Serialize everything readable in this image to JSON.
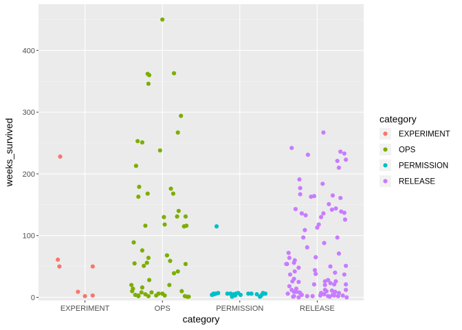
{
  "chart_data": {
    "type": "scatter",
    "title": "",
    "xlabel": "category",
    "ylabel": "weeks_survived",
    "categories": [
      "EXPERIMENT",
      "OPS",
      "PERMISSION",
      "RELEASE"
    ],
    "ylim": [
      -5,
      475
    ],
    "yticks": [
      0,
      100,
      200,
      300,
      400
    ],
    "grid": true,
    "jittered": true,
    "legend": {
      "title": "category",
      "position": "right",
      "entries": [
        "EXPERIMENT",
        "OPS",
        "PERMISSION",
        "RELEASE"
      ]
    },
    "colors": {
      "EXPERIMENT": "#F8766D",
      "OPS": "#7CAE00",
      "PERMISSION": "#00BFC4",
      "RELEASE": "#C77CFF",
      "panel": "#EBEBEB",
      "grid_major": "#FFFFFF"
    },
    "series": [
      {
        "name": "EXPERIMENT",
        "points": [
          [
            -0.32,
            228
          ],
          [
            -0.35,
            61
          ],
          [
            -0.33,
            50
          ],
          [
            0.1,
            50
          ],
          [
            -0.09,
            9
          ],
          [
            0.0,
            2
          ],
          [
            0.1,
            3
          ]
        ]
      },
      {
        "name": "OPS",
        "points": [
          [
            0.0,
            450
          ],
          [
            -0.19,
            362
          ],
          [
            -0.17,
            360
          ],
          [
            0.15,
            363
          ],
          [
            -0.18,
            346
          ],
          [
            0.24,
            294
          ],
          [
            0.2,
            267
          ],
          [
            -0.32,
            253
          ],
          [
            -0.26,
            251
          ],
          [
            -0.03,
            238
          ],
          [
            -0.34,
            213
          ],
          [
            -0.3,
            179
          ],
          [
            0.11,
            176
          ],
          [
            -0.19,
            168
          ],
          [
            0.14,
            168
          ],
          [
            -0.31,
            163
          ],
          [
            0.21,
            140
          ],
          [
            0.3,
            131
          ],
          [
            0.02,
            130
          ],
          [
            0.19,
            131
          ],
          [
            -0.22,
            116
          ],
          [
            0.03,
            118
          ],
          [
            0.31,
            116
          ],
          [
            0.28,
            115
          ],
          [
            -0.37,
            89
          ],
          [
            -0.26,
            76
          ],
          [
            0.06,
            68
          ],
          [
            -0.18,
            64
          ],
          [
            -0.2,
            56
          ],
          [
            0.1,
            59
          ],
          [
            -0.36,
            55
          ],
          [
            0.3,
            54
          ],
          [
            -0.24,
            51
          ],
          [
            0.2,
            42
          ],
          [
            0.15,
            39
          ],
          [
            -0.17,
            28
          ],
          [
            -0.4,
            20
          ],
          [
            0.09,
            20
          ],
          [
            -0.38,
            14
          ],
          [
            -0.26,
            16
          ],
          [
            -0.39,
            10
          ],
          [
            -0.27,
            8
          ],
          [
            -0.14,
            8
          ],
          [
            0.0,
            6
          ],
          [
            -0.05,
            6
          ],
          [
            0.25,
            10
          ],
          [
            -0.31,
            3
          ],
          [
            -0.22,
            5
          ],
          [
            -0.08,
            3
          ],
          [
            0.03,
            3
          ],
          [
            0.29,
            2
          ],
          [
            0.32,
            1
          ],
          [
            0.34,
            1
          ],
          [
            -0.35,
            4
          ],
          [
            -0.31,
            2
          ],
          [
            -0.18,
            2
          ]
        ]
      },
      {
        "name": "PERMISSION",
        "points": [
          [
            -0.3,
            115
          ],
          [
            -0.34,
            6
          ],
          [
            -0.31,
            6
          ],
          [
            -0.28,
            7
          ],
          [
            -0.16,
            6
          ],
          [
            -0.12,
            6
          ],
          [
            -0.08,
            5
          ],
          [
            -0.05,
            6
          ],
          [
            -0.02,
            7
          ],
          [
            0.01,
            4
          ],
          [
            0.11,
            6
          ],
          [
            0.15,
            6
          ],
          [
            0.22,
            5
          ],
          [
            0.33,
            6
          ],
          [
            0.29,
            5
          ],
          [
            0.3,
            7
          ],
          [
            -0.36,
            4
          ],
          [
            -0.33,
            5
          ],
          [
            -0.1,
            1
          ],
          [
            -0.06,
            3
          ],
          [
            0.26,
            1
          ],
          [
            0.27,
            2
          ]
        ]
      },
      {
        "name": "RELEASE",
        "points": [
          [
            0.08,
            267
          ],
          [
            -0.33,
            242
          ],
          [
            -0.12,
            231
          ],
          [
            0.3,
            236
          ],
          [
            0.35,
            233
          ],
          [
            0.37,
            223
          ],
          [
            0.26,
            221
          ],
          [
            0.28,
            210
          ],
          [
            -0.23,
            191
          ],
          [
            -0.22,
            177
          ],
          [
            0.07,
            184
          ],
          [
            0.2,
            165
          ],
          [
            -0.08,
            163
          ],
          [
            -0.22,
            167
          ],
          [
            -0.04,
            164
          ],
          [
            0.3,
            161
          ],
          [
            -0.28,
            143
          ],
          [
            0.15,
            151
          ],
          [
            0.35,
            137
          ],
          [
            -0.2,
            136
          ],
          [
            0.31,
            139
          ],
          [
            -0.15,
            133
          ],
          [
            0.08,
            136
          ],
          [
            0.24,
            144
          ],
          [
            0.05,
            130
          ],
          [
            0.19,
            142
          ],
          [
            0.02,
            118
          ],
          [
            0.36,
            126
          ],
          [
            0.0,
            113
          ],
          [
            -0.16,
            109
          ],
          [
            0.26,
            97
          ],
          [
            -0.18,
            97
          ],
          [
            0.09,
            88
          ],
          [
            -0.13,
            81
          ],
          [
            -0.37,
            72
          ],
          [
            -0.36,
            64
          ],
          [
            -0.29,
            60
          ],
          [
            -0.3,
            56
          ],
          [
            -0.4,
            54
          ],
          [
            -0.39,
            54
          ],
          [
            -0.02,
            65
          ],
          [
            -0.24,
            48
          ],
          [
            0.17,
            50
          ],
          [
            0.37,
            51
          ],
          [
            0.28,
            71
          ],
          [
            -0.29,
            42
          ],
          [
            -0.03,
            44
          ],
          [
            -0.02,
            38
          ],
          [
            0.23,
            40
          ],
          [
            -0.35,
            37
          ],
          [
            0.35,
            37
          ],
          [
            -0.3,
            30
          ],
          [
            0.1,
            26
          ],
          [
            0.17,
            23
          ],
          [
            0.1,
            20
          ],
          [
            0.24,
            26
          ],
          [
            0.14,
            28
          ],
          [
            0.22,
            21
          ],
          [
            -0.32,
            26
          ],
          [
            -0.36,
            18
          ],
          [
            -0.24,
            25
          ],
          [
            -0.04,
            21
          ],
          [
            -0.27,
            14
          ],
          [
            0.37,
            21
          ],
          [
            0.1,
            12
          ],
          [
            -0.33,
            12
          ],
          [
            -0.3,
            9
          ],
          [
            -0.27,
            9
          ],
          [
            -0.23,
            8
          ],
          [
            -0.22,
            7
          ],
          [
            0.05,
            7
          ],
          [
            0.12,
            10
          ],
          [
            0.19,
            11
          ],
          [
            0.23,
            9
          ],
          [
            0.28,
            7
          ],
          [
            0.37,
            12
          ],
          [
            -0.38,
            6
          ],
          [
            -0.3,
            2
          ],
          [
            -0.2,
            4
          ],
          [
            -0.13,
            2
          ],
          [
            -0.06,
            2
          ],
          [
            0.09,
            5
          ],
          [
            0.2,
            4
          ],
          [
            0.27,
            2
          ],
          [
            0.33,
            3
          ],
          [
            0.38,
            0
          ],
          [
            -0.31,
            1
          ],
          [
            -0.24,
            0
          ],
          [
            0.04,
            3
          ],
          [
            0.14,
            2
          ],
          [
            0.16,
            1
          ],
          [
            0.22,
            3
          ]
        ]
      }
    ]
  }
}
